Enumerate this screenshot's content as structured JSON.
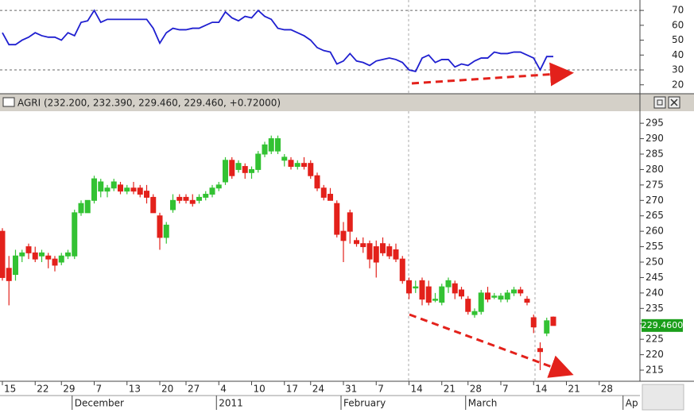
{
  "chart_data": [
    {
      "type": "line",
      "color": "#1f1fd0",
      "ylim": [
        14,
        77
      ],
      "yticks": [
        20,
        30,
        40,
        50,
        60,
        70
      ],
      "reference_lines": [
        30,
        70
      ],
      "values": [
        55,
        47,
        47,
        50,
        52,
        55,
        53,
        52,
        52,
        50,
        55,
        53,
        62,
        63,
        70,
        62,
        64,
        64,
        64,
        64,
        64,
        64,
        64,
        58,
        48,
        55,
        58,
        57,
        57,
        58,
        58,
        60,
        62,
        62,
        69,
        65,
        63,
        66,
        65,
        70,
        66,
        64,
        58,
        57,
        57,
        55,
        53,
        50,
        45,
        43,
        42,
        34,
        36,
        41,
        36,
        35,
        33,
        36,
        37,
        38,
        37,
        35,
        30,
        29,
        38,
        40,
        35,
        37,
        37,
        32,
        34,
        33,
        36,
        38,
        38,
        42,
        41,
        41,
        42,
        42,
        40,
        38,
        30,
        39,
        39,
        null,
        null,
        null,
        null,
        null,
        null,
        null,
        null,
        null,
        null,
        null,
        null
      ]
    },
    {
      "type": "candlestick",
      "title": "AGRI (232.200, 232.390, 229.460, 229.460, +0.72000)",
      "up_color": "#33c233",
      "down_color": "#e3211b",
      "ylim": [
        211.4,
        298.9
      ],
      "yticks": [
        215,
        220,
        225,
        230,
        235,
        240,
        245,
        250,
        255,
        260,
        265,
        270,
        275,
        280,
        285,
        290,
        295
      ],
      "last_price": {
        "value": 229.46,
        "label": "229.4600"
      },
      "categories": [
        "15",
        null,
        null,
        null,
        null,
        "22",
        null,
        null,
        null,
        "29",
        null,
        null,
        null,
        null,
        "7",
        null,
        null,
        null,
        null,
        "13",
        null,
        null,
        null,
        null,
        "20",
        null,
        null,
        null,
        "27",
        null,
        null,
        null,
        null,
        "4",
        null,
        null,
        null,
        null,
        "10",
        null,
        null,
        null,
        null,
        "17",
        null,
        null,
        null,
        "24",
        null,
        null,
        null,
        null,
        "31",
        null,
        null,
        null,
        null,
        "7",
        null,
        null,
        null,
        null,
        "14",
        null,
        null,
        null,
        null,
        "21",
        null,
        null,
        null,
        "28",
        null,
        null,
        null,
        null,
        "7",
        null,
        null,
        null,
        null,
        "14",
        null,
        null,
        null,
        null,
        "21",
        null,
        null,
        null,
        null,
        "28",
        null,
        null,
        null,
        null,
        null
      ],
      "months": [
        null,
        null,
        null,
        null,
        null,
        null,
        null,
        null,
        null,
        null,
        null,
        "December",
        null,
        null,
        null,
        null,
        null,
        null,
        null,
        null,
        null,
        null,
        null,
        null,
        null,
        null,
        null,
        null,
        null,
        null,
        null,
        null,
        null,
        "2011",
        null,
        null,
        null,
        null,
        null,
        null,
        null,
        null,
        null,
        null,
        null,
        null,
        null,
        null,
        null,
        null,
        null,
        null,
        "February",
        null,
        null,
        null,
        null,
        null,
        null,
        null,
        null,
        null,
        null,
        null,
        null,
        null,
        null,
        null,
        null,
        null,
        null,
        "March",
        null,
        null,
        null,
        null,
        null,
        null,
        null,
        null,
        null,
        null,
        null,
        null,
        null,
        null,
        null,
        null,
        null,
        null,
        null,
        null,
        null,
        null,
        null,
        "Ap",
        null
      ],
      "open": [
        260,
        248,
        246,
        252,
        255,
        253,
        252,
        252,
        251,
        250,
        252,
        252,
        266,
        266,
        270,
        273,
        273,
        274,
        275,
        273,
        274,
        274,
        273,
        271,
        265,
        258,
        267,
        271,
        271,
        270,
        270,
        271,
        272,
        274,
        276,
        283,
        280,
        281,
        279,
        280,
        285,
        286,
        286,
        283,
        283,
        281,
        282,
        282,
        278,
        274,
        272,
        269,
        260,
        266,
        257,
        256,
        256,
        255,
        256,
        255,
        254,
        251,
        244,
        242,
        244,
        242,
        238,
        237,
        242,
        243,
        241,
        238,
        233,
        234,
        240,
        239,
        238,
        238,
        240,
        241,
        238,
        232,
        222,
        227,
        232.2,
        null,
        null,
        null,
        null,
        null,
        null,
        null,
        null,
        null,
        null,
        null,
        null
      ],
      "high": [
        261,
        252,
        254,
        254,
        256,
        255,
        254,
        253,
        252,
        253,
        254,
        267,
        270,
        270,
        278,
        277,
        275,
        277,
        276,
        275,
        276,
        275,
        275,
        272,
        266,
        263,
        272,
        272,
        272,
        272,
        272,
        273,
        275,
        276,
        284,
        284,
        283,
        282,
        281,
        286,
        289,
        291,
        291,
        285,
        284,
        283,
        284,
        283,
        279,
        275,
        274,
        270,
        263,
        267,
        258,
        258,
        257,
        257,
        258,
        256,
        256,
        252,
        245,
        244,
        245,
        244,
        240,
        243,
        245,
        244,
        242,
        239,
        235,
        241,
        242,
        240,
        240,
        241,
        242,
        242,
        239,
        233,
        224,
        232,
        232.39,
        null,
        null,
        null,
        null,
        null,
        null,
        null,
        null,
        null,
        null,
        null,
        null
      ],
      "low": [
        244,
        236,
        244,
        250,
        251,
        250,
        250,
        248,
        247,
        249,
        251,
        251,
        265,
        266,
        269,
        271,
        271,
        273,
        272,
        272,
        272,
        271,
        269,
        266,
        254,
        256,
        266,
        269,
        269,
        268,
        269,
        270,
        271,
        273,
        275,
        277,
        279,
        277,
        277,
        279,
        284,
        285,
        285,
        281,
        280,
        280,
        280,
        277,
        273,
        270,
        270,
        258,
        250,
        256,
        255,
        253,
        248,
        245,
        252,
        251,
        250,
        243,
        238,
        240,
        236,
        236,
        237,
        236,
        240,
        238,
        238,
        233,
        232,
        233,
        237,
        238,
        237,
        237,
        239,
        239,
        236,
        227,
        215,
        226,
        229.46,
        null,
        null,
        null,
        null,
        null,
        null,
        null,
        null,
        null,
        null,
        null,
        null
      ],
      "close": [
        245,
        244,
        252,
        253,
        253,
        251,
        253,
        251,
        249,
        252,
        253,
        266,
        269,
        270,
        277,
        276,
        274,
        276,
        273,
        274,
        273,
        272,
        271,
        266,
        258,
        262,
        270,
        270,
        270,
        269,
        271,
        272,
        274,
        275,
        283,
        278,
        282,
        279,
        280,
        285,
        288,
        290,
        290,
        284,
        281,
        282,
        281,
        278,
        274,
        271,
        270,
        259,
        257,
        260,
        256,
        255,
        251,
        250,
        253,
        252,
        251,
        244,
        240,
        242,
        238,
        237,
        238,
        242,
        244,
        240,
        239,
        234,
        234,
        240,
        238,
        239,
        239,
        240,
        241,
        240,
        237,
        229,
        221,
        231,
        229.46,
        null,
        null,
        null,
        null,
        null,
        null,
        null,
        null,
        null,
        null,
        null,
        null
      ]
    }
  ]
}
